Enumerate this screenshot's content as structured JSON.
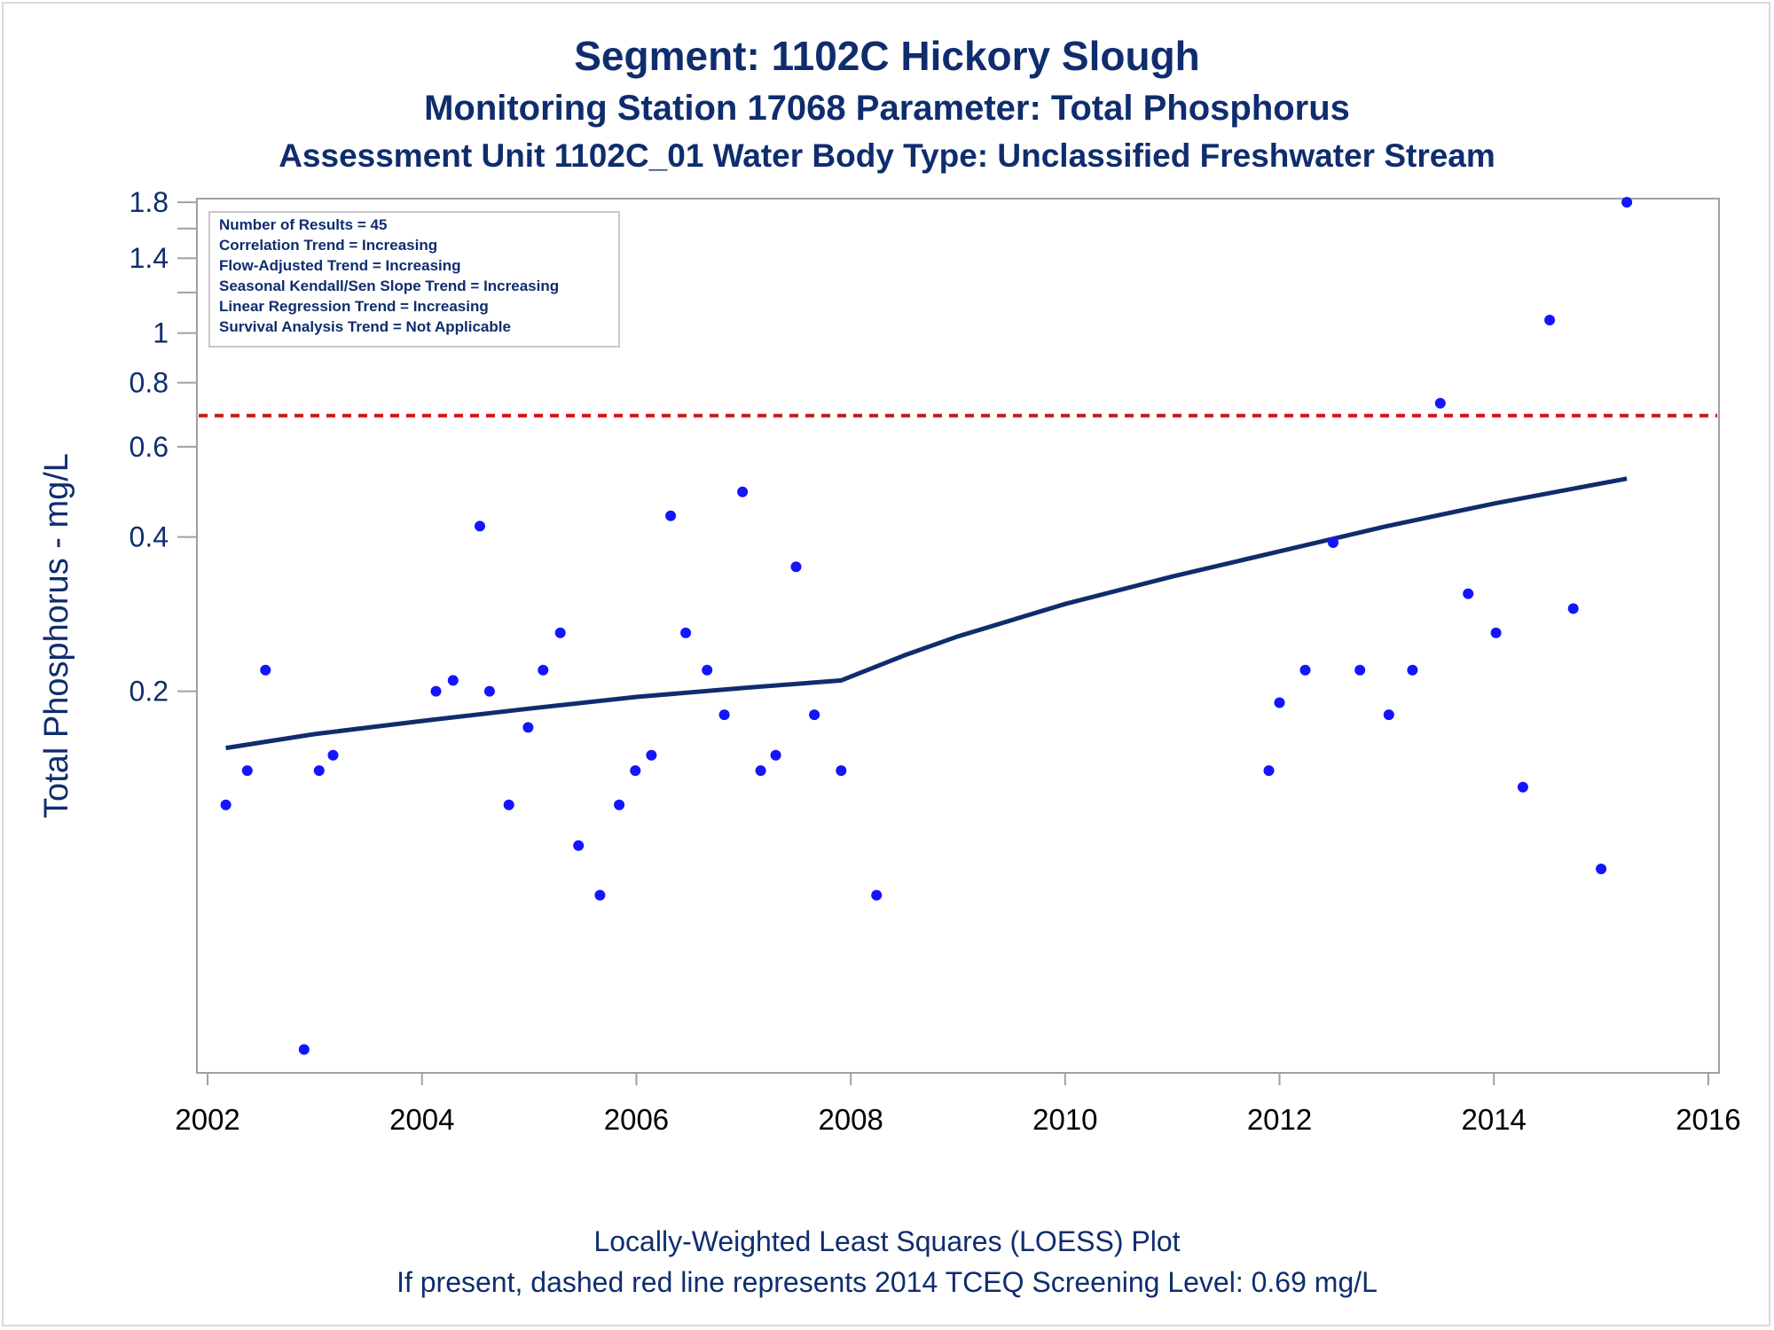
{
  "titles": {
    "line1": "Segment: 1102C  Hickory Slough",
    "line2": "Monitoring Station 17068 Parameter: Total Phosphorus",
    "line3": "Assessment Unit 1102C_01   Water Body Type: Unclassified Freshwater Stream"
  },
  "footnotes": {
    "line1": "Locally-Weighted Least Squares (LOESS) Plot",
    "line2": "If present, dashed red line represents 2014 TCEQ Screening Level: 0.69 mg/L"
  },
  "legend": [
    "Number of Results = 45",
    "Correlation Trend = Increasing",
    "Flow-Adjusted Trend = Increasing",
    "Seasonal Kendall/Sen Slope Trend = Increasing",
    "Linear Regression Trend = Increasing",
    "Survival Analysis Trend = Not Applicable"
  ],
  "colors": {
    "points": "#1414ff",
    "loess": "#0f2d6e",
    "screening": "#d21414",
    "text": "#0f2d6e",
    "axis": "#a0a0a0"
  },
  "chart_data": {
    "type": "scatter",
    "title": "Segment: 1102C  Hickory Slough",
    "xlabel": "",
    "ylabel": "Total Phosphorus - mg/L",
    "y_scale": "log",
    "xlim": [
      2001.9,
      2016.1
    ],
    "ylim": [
      0.036,
      1.83
    ],
    "x_ticks": [
      2002,
      2004,
      2006,
      2008,
      2010,
      2012,
      2014,
      2016
    ],
    "y_ticks": [
      0.2,
      0.4,
      0.6,
      0.8,
      1,
      1.4,
      1.8
    ],
    "y_minor_ticks": [
      1.2,
      1.6
    ],
    "grid": false,
    "legend_position": "top-left",
    "screening_level": 0.69,
    "points": [
      {
        "x": 2002.17,
        "y": 0.12
      },
      {
        "x": 2002.37,
        "y": 0.14
      },
      {
        "x": 2002.54,
        "y": 0.22
      },
      {
        "x": 2002.9,
        "y": 0.04
      },
      {
        "x": 2003.04,
        "y": 0.14
      },
      {
        "x": 2003.17,
        "y": 0.15
      },
      {
        "x": 2004.13,
        "y": 0.2
      },
      {
        "x": 2004.29,
        "y": 0.21
      },
      {
        "x": 2004.54,
        "y": 0.42
      },
      {
        "x": 2004.63,
        "y": 0.2
      },
      {
        "x": 2004.81,
        "y": 0.12
      },
      {
        "x": 2004.99,
        "y": 0.17
      },
      {
        "x": 2005.13,
        "y": 0.22
      },
      {
        "x": 2005.29,
        "y": 0.26
      },
      {
        "x": 2005.46,
        "y": 0.1
      },
      {
        "x": 2005.66,
        "y": 0.08
      },
      {
        "x": 2005.84,
        "y": 0.12
      },
      {
        "x": 2005.99,
        "y": 0.14
      },
      {
        "x": 2006.14,
        "y": 0.15
      },
      {
        "x": 2006.32,
        "y": 0.44
      },
      {
        "x": 2006.46,
        "y": 0.26
      },
      {
        "x": 2006.66,
        "y": 0.22
      },
      {
        "x": 2006.82,
        "y": 0.18
      },
      {
        "x": 2006.99,
        "y": 0.49
      },
      {
        "x": 2007.16,
        "y": 0.14
      },
      {
        "x": 2007.3,
        "y": 0.15
      },
      {
        "x": 2007.49,
        "y": 0.35
      },
      {
        "x": 2007.66,
        "y": 0.18
      },
      {
        "x": 2007.91,
        "y": 0.14
      },
      {
        "x": 2008.24,
        "y": 0.08
      },
      {
        "x": 2011.9,
        "y": 0.14
      },
      {
        "x": 2012.0,
        "y": 0.19
      },
      {
        "x": 2012.24,
        "y": 0.22
      },
      {
        "x": 2012.5,
        "y": 0.39
      },
      {
        "x": 2012.75,
        "y": 0.22
      },
      {
        "x": 2013.02,
        "y": 0.18
      },
      {
        "x": 2013.24,
        "y": 0.22
      },
      {
        "x": 2013.5,
        "y": 0.73
      },
      {
        "x": 2013.76,
        "y": 0.31
      },
      {
        "x": 2014.02,
        "y": 0.26
      },
      {
        "x": 2014.27,
        "y": 0.13
      },
      {
        "x": 2014.52,
        "y": 1.06
      },
      {
        "x": 2014.74,
        "y": 0.29
      },
      {
        "x": 2015.0,
        "y": 0.09
      },
      {
        "x": 2015.24,
        "y": 1.8
      }
    ],
    "loess": [
      {
        "x": 2002.17,
        "y": 0.155
      },
      {
        "x": 2003.0,
        "y": 0.165
      },
      {
        "x": 2004.0,
        "y": 0.175
      },
      {
        "x": 2005.0,
        "y": 0.185
      },
      {
        "x": 2006.0,
        "y": 0.195
      },
      {
        "x": 2007.0,
        "y": 0.203
      },
      {
        "x": 2007.91,
        "y": 0.21
      },
      {
        "x": 2008.5,
        "y": 0.235
      },
      {
        "x": 2009.0,
        "y": 0.256
      },
      {
        "x": 2010.0,
        "y": 0.296
      },
      {
        "x": 2011.0,
        "y": 0.335
      },
      {
        "x": 2012.0,
        "y": 0.375
      },
      {
        "x": 2013.0,
        "y": 0.42
      },
      {
        "x": 2014.0,
        "y": 0.465
      },
      {
        "x": 2015.24,
        "y": 0.52
      }
    ]
  }
}
